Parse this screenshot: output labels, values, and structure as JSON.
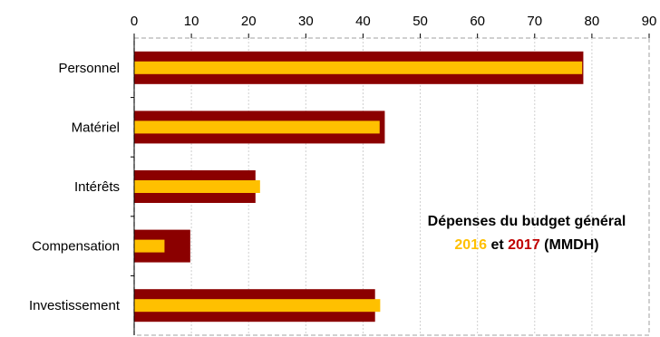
{
  "chart_data": {
    "type": "bar",
    "orientation": "horizontal",
    "categories": [
      "Personnel",
      "Matériel",
      "Intérêts",
      "Compensation",
      "Investissement"
    ],
    "series": [
      {
        "name": "2017",
        "values": [
          78.5,
          43.8,
          21.2,
          9.8,
          42.1
        ],
        "color": "#8b0000"
      },
      {
        "name": "2016",
        "values": [
          78.3,
          42.9,
          22.0,
          5.3,
          43.0
        ],
        "color": "#ffc000"
      }
    ],
    "xlim": [
      0,
      90
    ],
    "xticks": [
      "0",
      "10",
      "20",
      "30",
      "40",
      "50",
      "60",
      "70",
      "80",
      "90"
    ],
    "x_axis_position": "top",
    "grid": "vertical dotted",
    "title": {
      "line1": "Dépenses du budget général",
      "line2_year1": "2016",
      "line2_mid": " et ",
      "line2_year2": "2017",
      "line2_rest": " (MMDH)"
    },
    "title_colors": {
      "main": "#000000",
      "year1": "#ffc000",
      "year2": "#c00000"
    }
  }
}
